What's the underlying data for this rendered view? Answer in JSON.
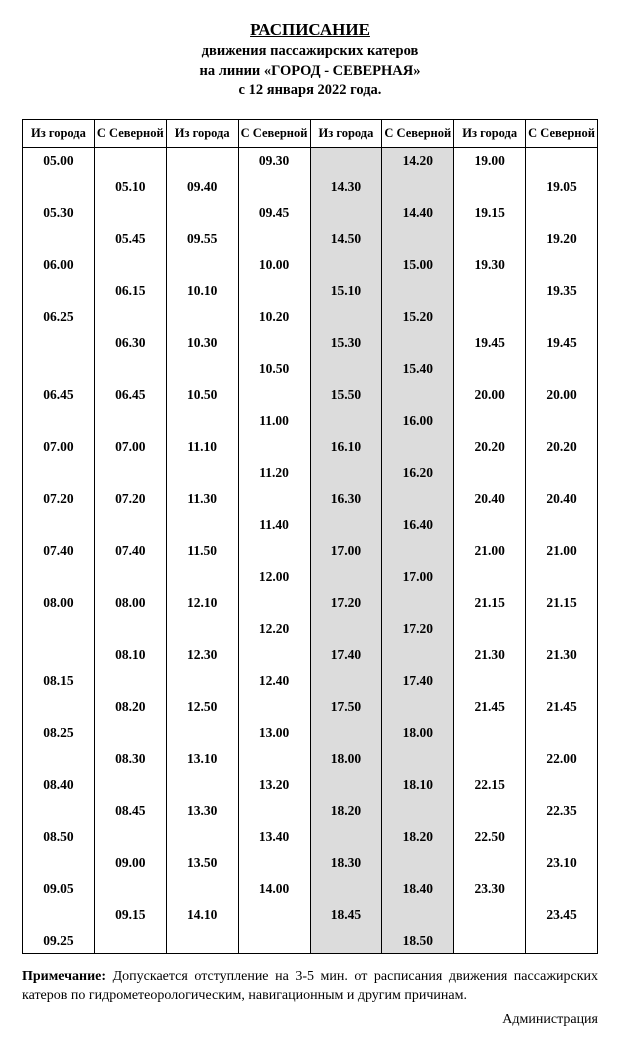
{
  "header": {
    "title": "РАСПИСАНИЕ",
    "line1": "движения  пассажирских катеров",
    "line2": "на линии «ГОРОД - СЕВЕРНАЯ»",
    "line3": "с 12 января 2022 года."
  },
  "columns": {
    "from_city": "Из города",
    "from_north": "С Северной"
  },
  "rows": [
    [
      "05.00",
      "",
      "",
      "09.30",
      "",
      "14.20",
      "19.00",
      ""
    ],
    [
      "",
      "05.10",
      "09.40",
      "",
      "14.30",
      "",
      "",
      "19.05"
    ],
    [
      "05.30",
      "",
      "",
      "09.45",
      "",
      "14.40",
      "19.15",
      ""
    ],
    [
      "",
      "05.45",
      "09.55",
      "",
      "14.50",
      "",
      "",
      "19.20"
    ],
    [
      "06.00",
      "",
      "",
      "10.00",
      "",
      "15.00",
      "19.30",
      ""
    ],
    [
      "",
      "06.15",
      "10.10",
      "",
      "15.10",
      "",
      "",
      "19.35"
    ],
    [
      "06.25",
      "",
      "",
      "10.20",
      "",
      "15.20",
      "",
      ""
    ],
    [
      "",
      "06.30",
      "10.30",
      "",
      "15.30",
      "",
      "19.45",
      "19.45"
    ],
    [
      "",
      "",
      "",
      "10.50",
      "",
      "15.40",
      "",
      ""
    ],
    [
      "06.45",
      "06.45",
      "10.50",
      "",
      "15.50",
      "",
      "20.00",
      "20.00"
    ],
    [
      "",
      "",
      "",
      "11.00",
      "",
      "16.00",
      "",
      ""
    ],
    [
      "07.00",
      "07.00",
      "11.10",
      "",
      "16.10",
      "",
      "20.20",
      "20.20"
    ],
    [
      "",
      "",
      "",
      "11.20",
      "",
      "16.20",
      "",
      ""
    ],
    [
      "07.20",
      "07.20",
      "11.30",
      "",
      "16.30",
      "",
      "20.40",
      "20.40"
    ],
    [
      "",
      "",
      "",
      "11.40",
      "",
      "16.40",
      "",
      ""
    ],
    [
      "07.40",
      "07.40",
      "11.50",
      "",
      "17.00",
      "",
      "21.00",
      "21.00"
    ],
    [
      "",
      "",
      "",
      "12.00",
      "",
      "17.00",
      "",
      ""
    ],
    [
      "08.00",
      "08.00",
      "12.10",
      "",
      "17.20",
      "",
      "21.15",
      "21.15"
    ],
    [
      "",
      "",
      "",
      "12.20",
      "",
      "17.20",
      "",
      ""
    ],
    [
      "",
      "08.10",
      "12.30",
      "",
      "17.40",
      "",
      "21.30",
      "21.30"
    ],
    [
      "08.15",
      "",
      "",
      "12.40",
      "",
      "17.40",
      "",
      ""
    ],
    [
      "",
      "08.20",
      "12.50",
      "",
      "17.50",
      "",
      "21.45",
      "21.45"
    ],
    [
      "08.25",
      "",
      "",
      "13.00",
      "",
      "18.00",
      "",
      ""
    ],
    [
      "",
      "08.30",
      "13.10",
      "",
      "18.00",
      "",
      "",
      "22.00"
    ],
    [
      "08.40",
      "",
      "",
      "13.20",
      "",
      "18.10",
      "22.15",
      ""
    ],
    [
      "",
      "08.45",
      "13.30",
      "",
      "18.20",
      "",
      "",
      "22.35"
    ],
    [
      "08.50",
      "",
      "",
      "13.40",
      "",
      "18.20",
      "22.50",
      ""
    ],
    [
      "",
      "09.00",
      "13.50",
      "",
      "18.30",
      "",
      "",
      "23.10"
    ],
    [
      "09.05",
      "",
      "",
      "14.00",
      "",
      "18.40",
      "23.30",
      ""
    ],
    [
      "",
      "09.15",
      "14.10",
      "",
      "18.45",
      "",
      "",
      "23.45"
    ],
    [
      "09.25",
      "",
      "",
      "",
      "",
      "18.50",
      "",
      ""
    ]
  ],
  "footnote": {
    "label": "Примечание:",
    "text": " Допускается отступление на 3-5 мин. от расписания движения пассажирских катеров по гидрометеорологическим, навигационным и другим причинам."
  },
  "signature": "Администрация",
  "style": {
    "shaded_bg": "#dcdcdc",
    "shaded_columns": [
      4,
      5
    ]
  }
}
